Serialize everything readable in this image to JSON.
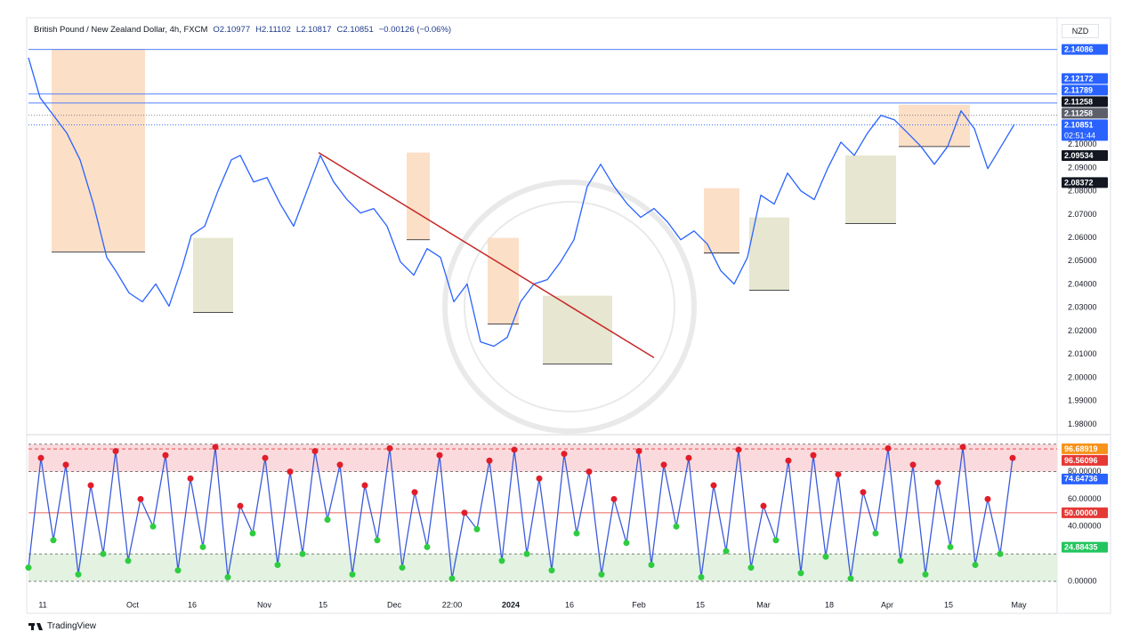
{
  "header": {
    "symbol": "British Pound / New Zealand Dollar, 4h, FXCM",
    "open": "O2.10977",
    "high": "H2.11102",
    "low": "L2.10817",
    "close": "C2.10851",
    "change": "−0.00126 (−0.06%)"
  },
  "currency": "NZD",
  "footer": "TradingView",
  "chart_data": [
    {
      "type": "line",
      "color": "#2962ff",
      "x": [
        0,
        13,
        28,
        43,
        58,
        73,
        88,
        98,
        113,
        128,
        143,
        158,
        173,
        183,
        198,
        213,
        228,
        238,
        253,
        268,
        283,
        298,
        313,
        328,
        343,
        358,
        373,
        388,
        403,
        418,
        433,
        448,
        463,
        478,
        493,
        508,
        523,
        538,
        553,
        568,
        583,
        598,
        613,
        628,
        643,
        658,
        673,
        688,
        703,
        718,
        733,
        748,
        763,
        778,
        793,
        808,
        823,
        838,
        853,
        868,
        883,
        898,
        913,
        928,
        943,
        958,
        973,
        988,
        1003,
        1018,
        1033,
        1048,
        1063,
        1078,
        1093,
        1108
      ],
      "values": [
        2.1373,
        2.1202,
        2.1126,
        2.105,
        2.0935,
        2.0745,
        2.0516,
        2.0459,
        2.0364,
        2.0326,
        2.0402,
        2.0307,
        2.0478,
        2.0611,
        2.065,
        2.0802,
        2.0935,
        2.0954,
        2.084,
        2.0859,
        2.0745,
        2.065,
        2.0802,
        2.0954,
        2.084,
        2.0764,
        2.0707,
        2.0726,
        2.065,
        2.0497,
        2.044,
        2.0554,
        2.0516,
        2.0326,
        2.0402,
        2.0154,
        2.0135,
        2.0173,
        2.0326,
        2.0402,
        2.0421,
        2.0497,
        2.0592,
        2.0821,
        2.0916,
        2.0821,
        2.0745,
        2.0688,
        2.0726,
        2.0669,
        2.0592,
        2.063,
        2.0573,
        2.0459,
        2.0402,
        2.0516,
        2.0783,
        2.0745,
        2.0878,
        2.0802,
        2.0764,
        2.0897,
        2.1011,
        2.0954,
        2.105,
        2.1126,
        2.1107,
        2.105,
        2.0992,
        2.0916,
        2.0992,
        2.1145,
        2.1069,
        2.0897,
        2.0992,
        2.1088
      ],
      "xlim": [
        0,
        1156
      ],
      "ylim": [
        1.979,
        2.143
      ],
      "yticks": [
        {
          "value": 1.98,
          "label": "1.98000"
        },
        {
          "value": 1.99,
          "label": "1.99000"
        },
        {
          "value": 2.0,
          "label": "2.00000"
        },
        {
          "value": 2.01,
          "label": "2.01000"
        },
        {
          "value": 2.02,
          "label": "2.02000"
        },
        {
          "value": 2.03,
          "label": "2.03000"
        },
        {
          "value": 2.04,
          "label": "2.04000"
        },
        {
          "value": 2.05,
          "label": "2.05000"
        },
        {
          "value": 2.06,
          "label": "2.06000"
        },
        {
          "value": 2.07,
          "label": "2.07000"
        },
        {
          "value": 2.08,
          "label": "2.08000"
        },
        {
          "value": 2.09,
          "label": "2.09000"
        },
        {
          "value": 2.1,
          "label": "2.10000"
        }
      ],
      "xticks": [
        {
          "value": 16,
          "label": "11"
        },
        {
          "value": 117,
          "label": "Oct"
        },
        {
          "value": 184,
          "label": "16"
        },
        {
          "value": 265,
          "label": "Nov"
        },
        {
          "value": 331,
          "label": "15"
        },
        {
          "value": 411,
          "label": "Dec"
        },
        {
          "value": 476,
          "label": "22:00"
        },
        {
          "value": 542,
          "label": "2024"
        },
        {
          "value": 608,
          "label": "16"
        },
        {
          "value": 686,
          "label": "Feb"
        },
        {
          "value": 755,
          "label": "15"
        },
        {
          "value": 826,
          "label": "Mar"
        },
        {
          "value": 900,
          "label": "18"
        },
        {
          "value": 965,
          "label": "Apr"
        },
        {
          "value": 1034,
          "label": "15"
        },
        {
          "value": 1113,
          "label": "May"
        }
      ],
      "zones": [
        {
          "x": [
            26,
            131
          ],
          "y": [
            2.054,
            2.141
          ],
          "color": "#fcd9bd"
        },
        {
          "x": [
            185,
            230
          ],
          "y": [
            2.028,
            2.06
          ],
          "color": "#e3e2c8"
        },
        {
          "x": [
            425,
            451
          ],
          "y": [
            2.0592,
            2.0966
          ],
          "color": "#fcd9bd"
        },
        {
          "x": [
            516,
            551
          ],
          "y": [
            2.023,
            2.06
          ],
          "color": "#fcd9bd"
        },
        {
          "x": [
            578,
            656
          ],
          "y": [
            2.0059,
            2.0352
          ],
          "color": "#e3e2c8"
        },
        {
          "x": [
            759,
            799
          ],
          "y": [
            2.0535,
            2.0813
          ],
          "color": "#fcd9bd"
        },
        {
          "x": [
            810,
            855
          ],
          "y": [
            2.0375,
            2.0688
          ],
          "color": "#e3e2c8"
        },
        {
          "x": [
            918,
            975
          ],
          "y": [
            2.0661,
            2.0954
          ],
          "color": "#e3e2c8"
        },
        {
          "x": [
            978,
            1058
          ],
          "y": [
            2.0992,
            2.1171
          ],
          "color": "#fcd9bd"
        }
      ],
      "trendline": {
        "x": [
          326,
          703
        ],
        "y": [
          2.0966,
          2.0086
        ],
        "color": "#c62828"
      },
      "levels": [
        {
          "value": 2.14086,
          "label": "2.14086",
          "color": "#2962ff",
          "line": "solid"
        },
        {
          "value": 2.12172,
          "label": "2.12172",
          "color": "#2962ff",
          "line": "solid"
        },
        {
          "value": 2.11789,
          "label": "2.11789",
          "color": "#2962ff",
          "line": "solid"
        },
        {
          "value": 2.11258,
          "label": "2.11258",
          "color": "#131722",
          "line": "none"
        },
        {
          "value": 2.11258,
          "label": "2.11258",
          "color": "#5d606b",
          "line": "dotted"
        },
        {
          "value": 2.10851,
          "label": "2.10851",
          "sub": "02:51:44",
          "color": "#2962ff",
          "line": "dotted"
        },
        {
          "value": 2.09534,
          "label": "2.09534",
          "color": "#131722",
          "line": "none"
        },
        {
          "value": 2.08372,
          "label": "2.08372",
          "color": "#131722",
          "line": "none"
        }
      ]
    },
    {
      "type": "line",
      "color": "#3b5bdb",
      "x": [
        0,
        14,
        28,
        42,
        56,
        70,
        84,
        98,
        112,
        126,
        140,
        154,
        168,
        182,
        196,
        210,
        224,
        238,
        252,
        266,
        280,
        294,
        308,
        322,
        336,
        350,
        364,
        378,
        392,
        406,
        420,
        434,
        448,
        462,
        476,
        490,
        504,
        518,
        532,
        546,
        560,
        574,
        588,
        602,
        616,
        630,
        644,
        658,
        672,
        686,
        700,
        714,
        728,
        742,
        756,
        770,
        784,
        798,
        812,
        826,
        840,
        854,
        868,
        882,
        896,
        910,
        924,
        938,
        952,
        966,
        980,
        994,
        1008,
        1022,
        1036,
        1050,
        1064,
        1078,
        1092,
        1106
      ],
      "values": [
        10,
        90,
        30,
        85,
        5,
        70,
        20,
        95,
        15,
        60,
        40,
        92,
        8,
        75,
        25,
        98,
        3,
        55,
        35,
        90,
        12,
        80,
        20,
        95,
        45,
        85,
        5,
        70,
        30,
        97,
        10,
        65,
        25,
        92,
        2,
        50,
        38,
        88,
        15,
        96,
        20,
        75,
        8,
        93,
        35,
        80,
        5,
        60,
        28,
        95,
        12,
        85,
        40,
        90,
        3,
        70,
        22,
        96,
        10,
        55,
        30,
        88,
        6,
        92,
        18,
        78,
        2,
        65,
        35,
        97,
        15,
        85,
        5,
        72,
        25,
        98,
        12,
        60,
        20,
        90
      ],
      "xlim": [
        0,
        1156
      ],
      "ylim": [
        -3.9,
        101.8
      ],
      "yticks": [
        {
          "value": 0,
          "label": "0.00000"
        },
        {
          "value": 40,
          "label": "40.00000"
        },
        {
          "value": 60,
          "label": "60.00000"
        },
        {
          "value": 80,
          "label": "80.00000"
        }
      ],
      "zones": [
        {
          "y": [
            80,
            100
          ],
          "color": "#fadadd"
        },
        {
          "y": [
            0,
            20
          ],
          "color": "#e3f2e1"
        }
      ],
      "levels": [
        {
          "value": 96.68919,
          "label": "96.68919",
          "color": "#f7931a",
          "line": "none"
        },
        {
          "value": 96.56096,
          "label": "96.56096",
          "color": "#e53935",
          "line": "dashed"
        },
        {
          "value": 74.64736,
          "label": "74.64736",
          "color": "#2962ff",
          "line": "none"
        },
        {
          "value": 50,
          "label": "50.00000",
          "color": "#e53935",
          "line": "solid"
        },
        {
          "value": 24.88435,
          "label": "24.88435",
          "color": "#22c55e",
          "line": "none"
        }
      ]
    }
  ]
}
